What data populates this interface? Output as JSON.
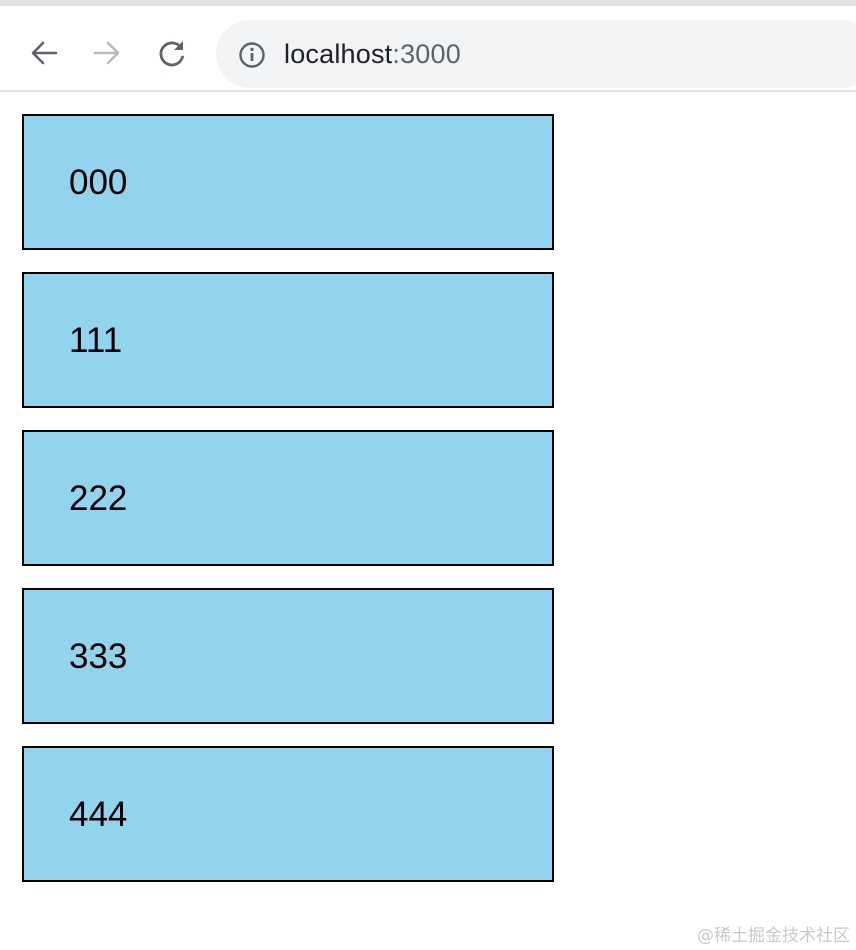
{
  "browser": {
    "nav": {
      "back_icon": "arrow-left-icon",
      "forward_icon": "arrow-right-icon",
      "reload_icon": "reload-icon"
    },
    "address_bar": {
      "icon": "info-circle-icon",
      "host": "localhost",
      "port": ":3000"
    }
  },
  "page": {
    "items": [
      {
        "label": "000"
      },
      {
        "label": "111"
      },
      {
        "label": "222"
      },
      {
        "label": "333"
      },
      {
        "label": "444"
      }
    ],
    "item_background": "#92d3ee",
    "item_border": "#000000"
  },
  "watermark": "@稀土掘金技术社区"
}
